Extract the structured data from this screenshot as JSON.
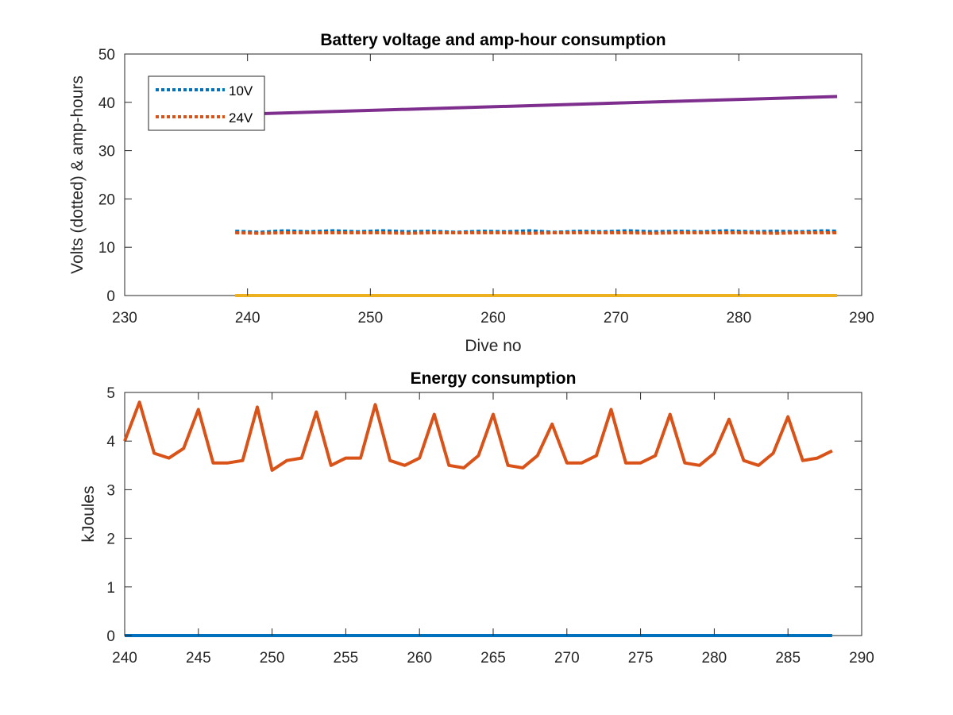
{
  "chart_data": [
    {
      "type": "line",
      "title": "Battery voltage and amp-hour consumption",
      "xlabel": "Dive no",
      "ylabel": "Volts (dotted) & amp-hours",
      "xlim": [
        230,
        290
      ],
      "ylim": [
        0,
        50
      ],
      "xticks": [
        230,
        240,
        250,
        260,
        270,
        280,
        290
      ],
      "yticks": [
        0,
        10,
        20,
        30,
        40,
        50
      ],
      "grid": false,
      "legend_position": "top-left",
      "series": [
        {
          "name": "10V",
          "style": "dotted",
          "color": "#0072BD",
          "in_legend": true,
          "x": [
            239,
            241,
            243,
            245,
            247,
            249,
            251,
            253,
            255,
            257,
            259,
            261,
            263,
            265,
            267,
            269,
            271,
            273,
            275,
            277,
            279,
            281,
            283,
            285,
            287,
            288
          ],
          "y": [
            13.3,
            13.1,
            13.4,
            13.2,
            13.4,
            13.2,
            13.4,
            13.2,
            13.3,
            13.1,
            13.3,
            13.2,
            13.4,
            13.1,
            13.3,
            13.2,
            13.4,
            13.2,
            13.3,
            13.2,
            13.4,
            13.2,
            13.3,
            13.2,
            13.4,
            13.3
          ]
        },
        {
          "name": "24V",
          "style": "dotted",
          "color": "#D95319",
          "in_legend": true,
          "x": [
            239,
            241,
            243,
            245,
            247,
            249,
            251,
            253,
            255,
            257,
            259,
            261,
            263,
            265,
            267,
            269,
            271,
            273,
            275,
            277,
            279,
            281,
            283,
            285,
            287,
            288
          ],
          "y": [
            13.0,
            12.9,
            13.0,
            13.0,
            13.0,
            13.0,
            13.0,
            12.9,
            13.0,
            13.0,
            13.0,
            13.0,
            12.9,
            13.0,
            13.0,
            13.0,
            13.0,
            12.9,
            13.0,
            13.0,
            13.0,
            13.0,
            12.9,
            13.0,
            13.0,
            13.0
          ]
        },
        {
          "name": "",
          "style": "solid",
          "color": "#EDB120",
          "in_legend": false,
          "x": [
            239,
            288
          ],
          "y": [
            0,
            0
          ]
        },
        {
          "name": "",
          "style": "solid",
          "color": "#7E2F8E",
          "in_legend": false,
          "x": [
            239,
            288
          ],
          "y": [
            37.5,
            41.2
          ]
        }
      ]
    },
    {
      "type": "line",
      "title": "Energy consumption",
      "xlabel": "",
      "ylabel": "kJoules",
      "xlim": [
        240,
        290
      ],
      "ylim": [
        0,
        5
      ],
      "xticks": [
        240,
        245,
        250,
        255,
        260,
        265,
        270,
        275,
        280,
        285,
        290
      ],
      "yticks": [
        0,
        1,
        2,
        3,
        4,
        5
      ],
      "grid": false,
      "legend_position": "none",
      "series": [
        {
          "name": "",
          "style": "solid",
          "color": "#D95319",
          "x": [
            240,
            241,
            242,
            243,
            244,
            245,
            246,
            247,
            248,
            249,
            250,
            251,
            252,
            253,
            254,
            255,
            256,
            257,
            258,
            259,
            260,
            261,
            262,
            263,
            264,
            265,
            266,
            267,
            268,
            269,
            270,
            271,
            272,
            273,
            274,
            275,
            276,
            277,
            278,
            279,
            280,
            281,
            282,
            283,
            284,
            285,
            286,
            287,
            288
          ],
          "y": [
            4.0,
            4.8,
            3.75,
            3.65,
            3.85,
            4.65,
            3.55,
            3.55,
            3.6,
            4.7,
            3.4,
            3.6,
            3.65,
            4.6,
            3.5,
            3.65,
            3.65,
            4.75,
            3.6,
            3.5,
            3.65,
            4.55,
            3.5,
            3.45,
            3.7,
            4.55,
            3.5,
            3.45,
            3.7,
            4.35,
            3.55,
            3.55,
            3.7,
            4.65,
            3.55,
            3.55,
            3.7,
            4.55,
            3.55,
            3.5,
            3.75,
            4.45,
            3.6,
            3.5,
            3.75,
            4.5,
            3.6,
            3.65,
            3.8
          ]
        },
        {
          "name": "",
          "style": "solid",
          "color": "#0072BD",
          "x": [
            240,
            288
          ],
          "y": [
            0,
            0
          ]
        }
      ]
    }
  ]
}
